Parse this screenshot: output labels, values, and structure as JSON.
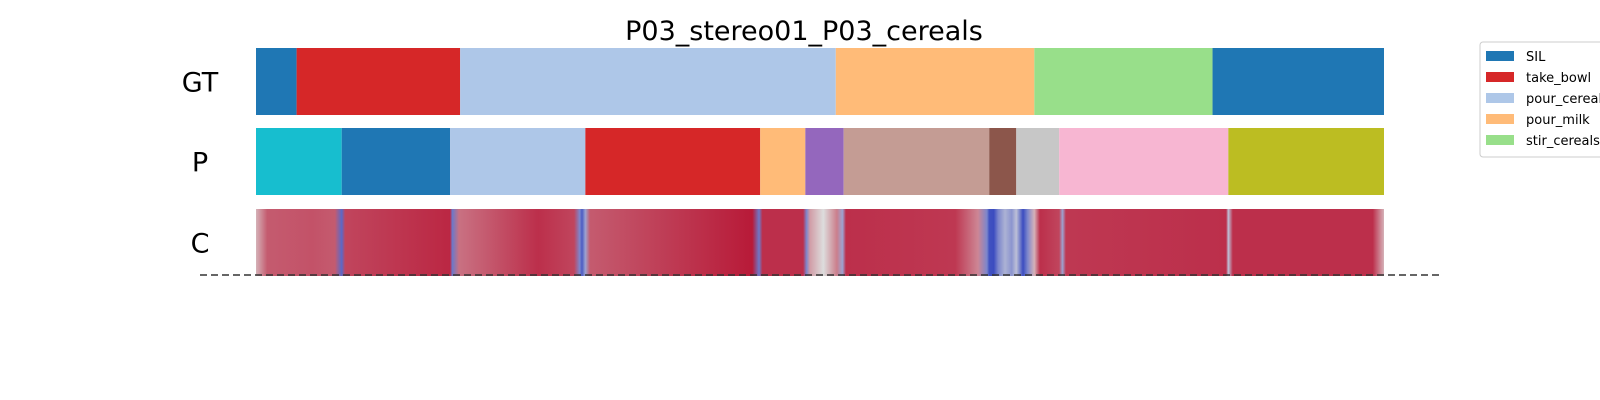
{
  "chart_data": {
    "type": "segmentation",
    "title": "P03_stereo01_P03_cereals",
    "rows": [
      {
        "label": "GT",
        "segments": [
          {
            "action": "SIL",
            "start": 0,
            "end": 0.036
          },
          {
            "action": "take_bowl",
            "start": 0.036,
            "end": 0.181
          },
          {
            "action": "pour_cereals",
            "start": 0.181,
            "end": 0.514
          },
          {
            "action": "pour_milk",
            "start": 0.514,
            "end": 0.69
          },
          {
            "action": "stir_cereals",
            "start": 0.69,
            "end": 0.848
          },
          {
            "action": "SIL",
            "start": 0.848,
            "end": 1.0
          }
        ]
      },
      {
        "label": "P",
        "segments": [
          {
            "color": "#17becf",
            "start": 0,
            "end": 0.076
          },
          {
            "color": "#1f77b4",
            "start": 0.076,
            "end": 0.172
          },
          {
            "color": "#aec7e8",
            "start": 0.172,
            "end": 0.292
          },
          {
            "color": "#d62728",
            "start": 0.292,
            "end": 0.447
          },
          {
            "color": "#ffbb78",
            "start": 0.447,
            "end": 0.487
          },
          {
            "color": "#9467bd",
            "start": 0.487,
            "end": 0.521
          },
          {
            "color": "#c49c94",
            "start": 0.521,
            "end": 0.65
          },
          {
            "color": "#8c564b",
            "start": 0.65,
            "end": 0.674
          },
          {
            "color": "#c7c7c7",
            "start": 0.674,
            "end": 0.712
          },
          {
            "color": "#f7b6d2",
            "start": 0.712,
            "end": 0.862
          },
          {
            "color": "#bcbd22",
            "start": 0.862,
            "end": 1.0
          }
        ]
      },
      {
        "label": "C",
        "confidence": [
          [
            0,
            0.6
          ],
          [
            0.01,
            0.8
          ],
          [
            0.05,
            0.82
          ],
          [
            0.07,
            0.8
          ],
          [
            0.076,
            0.1
          ],
          [
            0.079,
            0.85
          ],
          [
            0.172,
            0.92
          ],
          [
            0.174,
            0.15
          ],
          [
            0.18,
            0.75
          ],
          [
            0.25,
            0.9
          ],
          [
            0.282,
            0.85
          ],
          [
            0.287,
            0.2
          ],
          [
            0.289,
            0.05
          ],
          [
            0.292,
            0.3
          ],
          [
            0.296,
            0.8
          ],
          [
            0.44,
            0.95
          ],
          [
            0.446,
            0.15
          ],
          [
            0.449,
            0.9
          ],
          [
            0.485,
            0.9
          ],
          [
            0.488,
            0.2
          ],
          [
            0.491,
            0.65
          ],
          [
            0.503,
            0.5
          ],
          [
            0.515,
            0.72
          ],
          [
            0.52,
            0.3
          ],
          [
            0.523,
            0.9
          ],
          [
            0.62,
            0.88
          ],
          [
            0.64,
            0.7
          ],
          [
            0.648,
            0.2
          ],
          [
            0.65,
            0.02
          ],
          [
            0.654,
            0.0
          ],
          [
            0.658,
            0.2
          ],
          [
            0.664,
            0.35
          ],
          [
            0.67,
            0.25
          ],
          [
            0.674,
            0.4
          ],
          [
            0.68,
            0.0
          ],
          [
            0.684,
            0.2
          ],
          [
            0.69,
            0.6
          ],
          [
            0.695,
            0.9
          ],
          [
            0.712,
            0.85
          ],
          [
            0.715,
            0.3
          ],
          [
            0.718,
            0.88
          ],
          [
            0.86,
            0.9
          ],
          [
            0.862,
            0.4
          ],
          [
            0.866,
            0.9
          ],
          [
            0.99,
            0.9
          ],
          [
            1.0,
            0.6
          ]
        ]
      }
    ],
    "legend": {
      "placement": "top-right",
      "items": [
        {
          "label": "SIL",
          "color": "#1f77b4"
        },
        {
          "label": "take_bowl",
          "color": "#d62728"
        },
        {
          "label": "pour_cereals",
          "color": "#aec7e8"
        },
        {
          "label": "pour_milk",
          "color": "#ffbb78"
        },
        {
          "label": "stir_cereals",
          "color": "#98df8a"
        }
      ]
    },
    "colormap": {
      "low": "#3b4cc0",
      "mid": "#dddddd",
      "high": "#b40426"
    }
  }
}
